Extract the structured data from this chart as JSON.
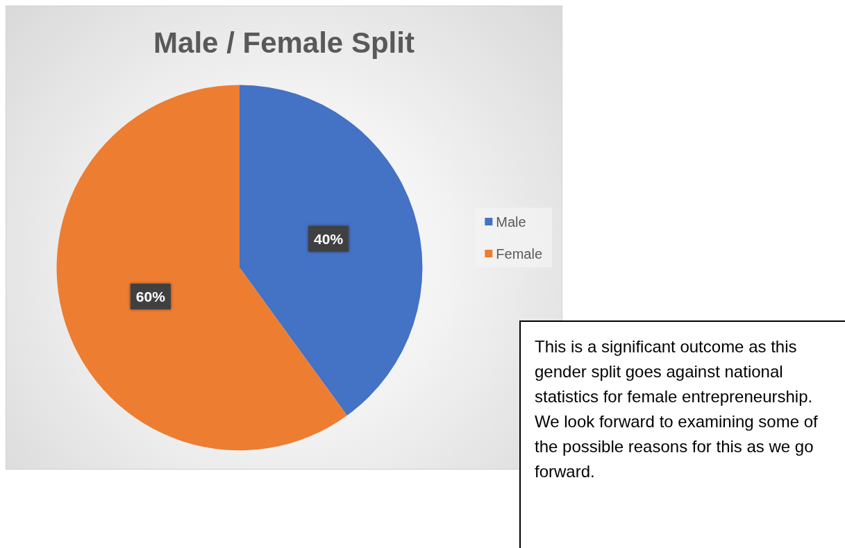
{
  "chart_data": {
    "type": "pie",
    "title": "Male / Female Split",
    "categories": [
      "Male",
      "Female"
    ],
    "values": [
      40,
      60
    ],
    "value_labels": [
      "40%",
      "60%"
    ],
    "colors": [
      "#4472c4",
      "#ed7d31"
    ],
    "legend": "right",
    "annotations": [
      "This is a significant outcome as this gender split goes against national statistics for female entrepreneurship. We look forward to examining some of the possible reasons for this as we go forward."
    ]
  }
}
